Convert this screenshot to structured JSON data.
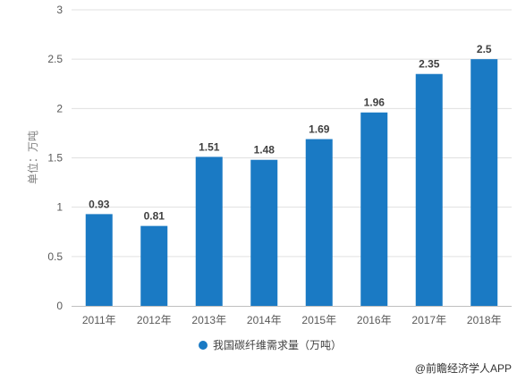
{
  "chart_data": {
    "type": "bar",
    "categories": [
      "2011年",
      "2012年",
      "2013年",
      "2014年",
      "2015年",
      "2016年",
      "2017年",
      "2018年"
    ],
    "series": [
      {
        "name": "我国碳纤维需求量（万吨）",
        "values": [
          0.93,
          0.81,
          1.51,
          1.48,
          1.69,
          1.96,
          2.35,
          2.5
        ],
        "color": "#1a7ac4"
      }
    ],
    "data_labels": [
      "0.93",
      "0.81",
      "1.51",
      "1.48",
      "1.69",
      "1.96",
      "2.35",
      "2.5"
    ],
    "ylabel": "单位：万吨",
    "ylim": [
      0,
      3
    ],
    "yticks": [
      0,
      0.5,
      1,
      1.5,
      2,
      2.5,
      3
    ],
    "ytick_labels": [
      "0",
      "0.5",
      "1",
      "1.5",
      "2",
      "2.5",
      "3"
    ],
    "grid": true,
    "legend": "bottom-center"
  },
  "credit": "@前瞻经济学人APP",
  "colors": {
    "bar": "#1a7ac4",
    "grid": "#e0e0e0",
    "axis": "#bfbfbf"
  }
}
